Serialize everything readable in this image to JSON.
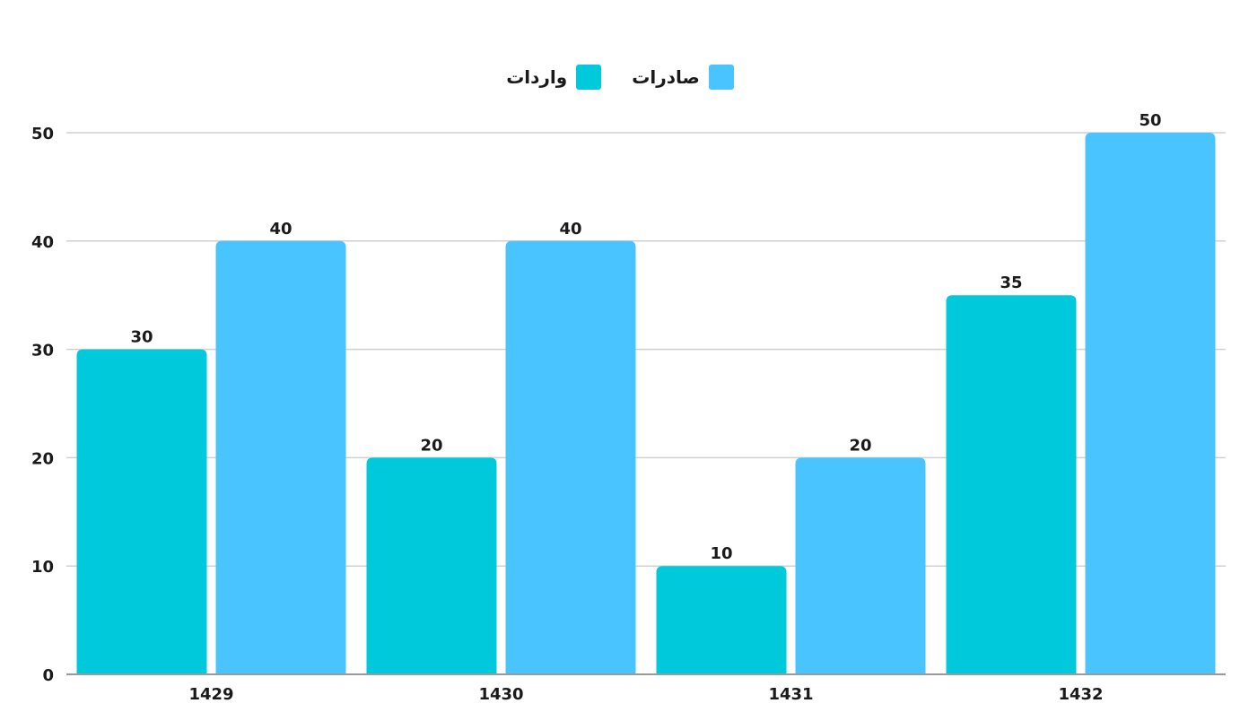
{
  "chart_data": {
    "type": "bar",
    "categories": [
      "1429",
      "1430",
      "1431",
      "1432"
    ],
    "series": [
      {
        "name": "واردات",
        "values": [
          30,
          20,
          10,
          35
        ],
        "color": "#00C9DB"
      },
      {
        "name": "صادرات",
        "values": [
          40,
          40,
          20,
          50
        ],
        "color": "#4AC4FE"
      }
    ],
    "ylim": [
      0,
      50
    ],
    "yticks": [
      0,
      10,
      20,
      30,
      40,
      50
    ],
    "grid": true,
    "legend_position": "top-center"
  }
}
